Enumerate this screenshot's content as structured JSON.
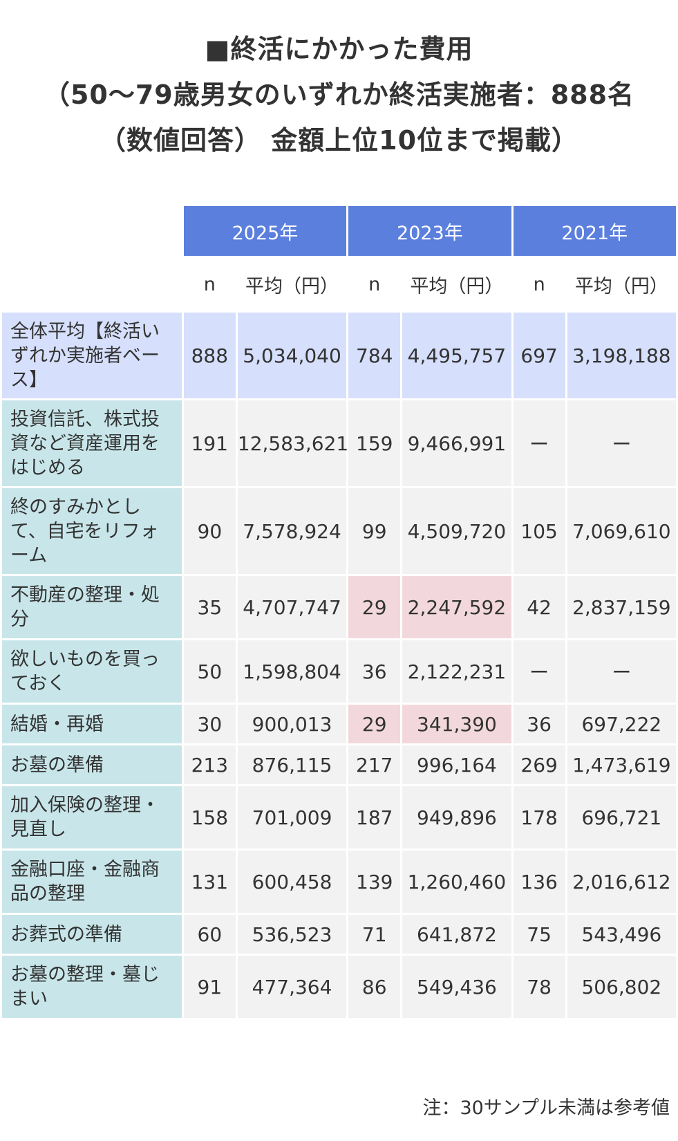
{
  "title": {
    "line1": "■終活にかかった費用",
    "line2": "（50〜79歳男女のいずれか終活実施者：888名",
    "line3": "（数値回答） 金額上位10位まで掲載）"
  },
  "header": {
    "years": [
      "2025年",
      "2023年",
      "2021年"
    ],
    "n_label": "n",
    "avg_label": "平均（円）"
  },
  "rows": [
    {
      "label": "全体平均【終活いずれか実施者ベース】",
      "v": [
        "888",
        "5,034,040",
        "784",
        "4,495,757",
        "697",
        "3,198,188"
      ]
    },
    {
      "label": "投資信託、株式投資など資産運用をはじめる",
      "v": [
        "191",
        "12,583,621",
        "159",
        "9,466,991",
        "ー",
        "ー"
      ]
    },
    {
      "label": "終のすみかとして、自宅をリフォーム",
      "v": [
        "90",
        "7,578,924",
        "99",
        "4,509,720",
        "105",
        "7,069,610"
      ]
    },
    {
      "label": "不動産の整理・処分",
      "v": [
        "35",
        "4,707,747",
        "29",
        "2,247,592",
        "42",
        "2,837,159"
      ]
    },
    {
      "label": "欲しいものを買っておく",
      "v": [
        "50",
        "1,598,804",
        "36",
        "2,122,231",
        "ー",
        "ー"
      ]
    },
    {
      "label": "結婚・再婚",
      "v": [
        "30",
        "900,013",
        "29",
        "341,390",
        "36",
        "697,222"
      ]
    },
    {
      "label": "お墓の準備",
      "v": [
        "213",
        "876,115",
        "217",
        "996,164",
        "269",
        "1,473,619"
      ]
    },
    {
      "label": "加入保険の整理・見直し",
      "v": [
        "158",
        "701,009",
        "187",
        "949,896",
        "178",
        "696,721"
      ]
    },
    {
      "label": "金融口座・金融商品の整理",
      "v": [
        "131",
        "600,458",
        "139",
        "1,260,460",
        "136",
        "2,016,612"
      ]
    },
    {
      "label": "お葬式の準備",
      "v": [
        "60",
        "536,523",
        "71",
        "641,872",
        "75",
        "543,496"
      ]
    },
    {
      "label": "お墓の整理・墓じまい",
      "v": [
        "91",
        "477,364",
        "86",
        "549,436",
        "78",
        "506,802"
      ]
    }
  ],
  "note": "注：30サンプル未満は参考値",
  "colors": {
    "header_blue": "#5b7fdd",
    "label_teal": "#c8e6ea",
    "total_row": "#d6dffb",
    "highlight_pink": "#f2d8dc",
    "cell_gray": "#f2f2f2"
  },
  "chart_data": {
    "type": "table",
    "columns": [
      "2025年 n",
      "2025年 平均（円）",
      "2023年 n",
      "2023年 平均（円）",
      "2021年 n",
      "2021年 平均（円）"
    ],
    "highlighted_cells": [
      {
        "row": 3,
        "cols": [
          2,
          3
        ]
      },
      {
        "row": 5,
        "cols": [
          2,
          3
        ]
      }
    ]
  }
}
